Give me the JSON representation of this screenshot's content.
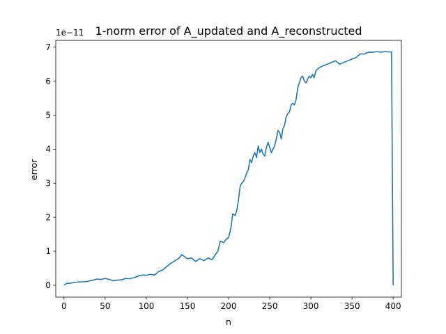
{
  "chart_data": {
    "type": "line",
    "title": "1-norm error of A_updated and A_reconstructed",
    "xlabel": "n",
    "ylabel": "error",
    "y_offset_label": "1e−11",
    "y_scale": 1e-11,
    "xlim": [
      -10,
      410
    ],
    "ylim": [
      -0.35,
      7.2
    ],
    "xticks": [
      0,
      50,
      100,
      150,
      200,
      250,
      300,
      350,
      400
    ],
    "yticks": [
      0,
      1,
      2,
      3,
      4,
      5,
      6,
      7
    ],
    "grid": false,
    "legend": "none",
    "color": "#1f77b4",
    "series": [
      {
        "x": [
          0,
          3,
          8,
          15,
          20,
          25,
          30,
          35,
          40,
          45,
          50,
          55,
          60,
          65,
          70,
          75,
          80,
          85,
          90,
          95,
          100,
          105,
          110,
          115,
          120,
          125,
          130,
          135,
          140,
          143,
          146,
          150,
          155,
          160,
          165,
          170,
          175,
          180,
          184,
          187,
          190,
          194,
          197,
          200,
          203,
          205,
          208,
          210,
          212,
          214,
          216,
          218,
          220,
          222,
          224,
          226,
          228,
          230,
          232,
          234,
          236,
          238,
          240,
          242,
          244,
          246,
          248,
          250,
          252,
          254,
          256,
          258,
          260,
          262,
          264,
          266,
          268,
          270,
          272,
          274,
          276,
          278,
          280,
          282,
          284,
          286,
          288,
          290,
          292,
          294,
          296,
          298,
          300,
          302,
          304,
          306,
          308,
          310,
          315,
          320,
          325,
          330,
          335,
          340,
          345,
          350,
          355,
          360,
          365,
          370,
          375,
          380,
          385,
          390,
          395,
          398,
          400
        ],
        "y": [
          0.0,
          0.05,
          0.06,
          0.09,
          0.1,
          0.1,
          0.12,
          0.15,
          0.18,
          0.17,
          0.2,
          0.17,
          0.13,
          0.15,
          0.16,
          0.2,
          0.19,
          0.22,
          0.27,
          0.3,
          0.29,
          0.32,
          0.3,
          0.4,
          0.45,
          0.55,
          0.65,
          0.72,
          0.8,
          0.9,
          0.85,
          0.78,
          0.8,
          0.7,
          0.78,
          0.72,
          0.8,
          0.75,
          0.9,
          1.0,
          1.3,
          1.25,
          1.35,
          1.4,
          1.7,
          2.1,
          2.05,
          2.2,
          2.5,
          2.9,
          3.0,
          3.05,
          3.15,
          3.3,
          3.4,
          3.7,
          3.6,
          3.8,
          3.9,
          3.75,
          4.1,
          3.9,
          4.0,
          3.85,
          3.8,
          4.05,
          4.2,
          4.05,
          3.9,
          4.0,
          4.1,
          4.3,
          4.55,
          4.5,
          4.3,
          4.6,
          4.7,
          4.95,
          5.05,
          5.1,
          5.3,
          5.35,
          5.3,
          5.45,
          5.8,
          5.95,
          6.1,
          6.15,
          6.0,
          5.95,
          6.05,
          6.15,
          6.1,
          6.2,
          6.1,
          6.3,
          6.35,
          6.4,
          6.45,
          6.5,
          6.55,
          6.6,
          6.5,
          6.55,
          6.6,
          6.65,
          6.7,
          6.8,
          6.8,
          6.85,
          6.85,
          6.87,
          6.85,
          6.87,
          6.86,
          6.86,
          0.0
        ]
      }
    ]
  }
}
